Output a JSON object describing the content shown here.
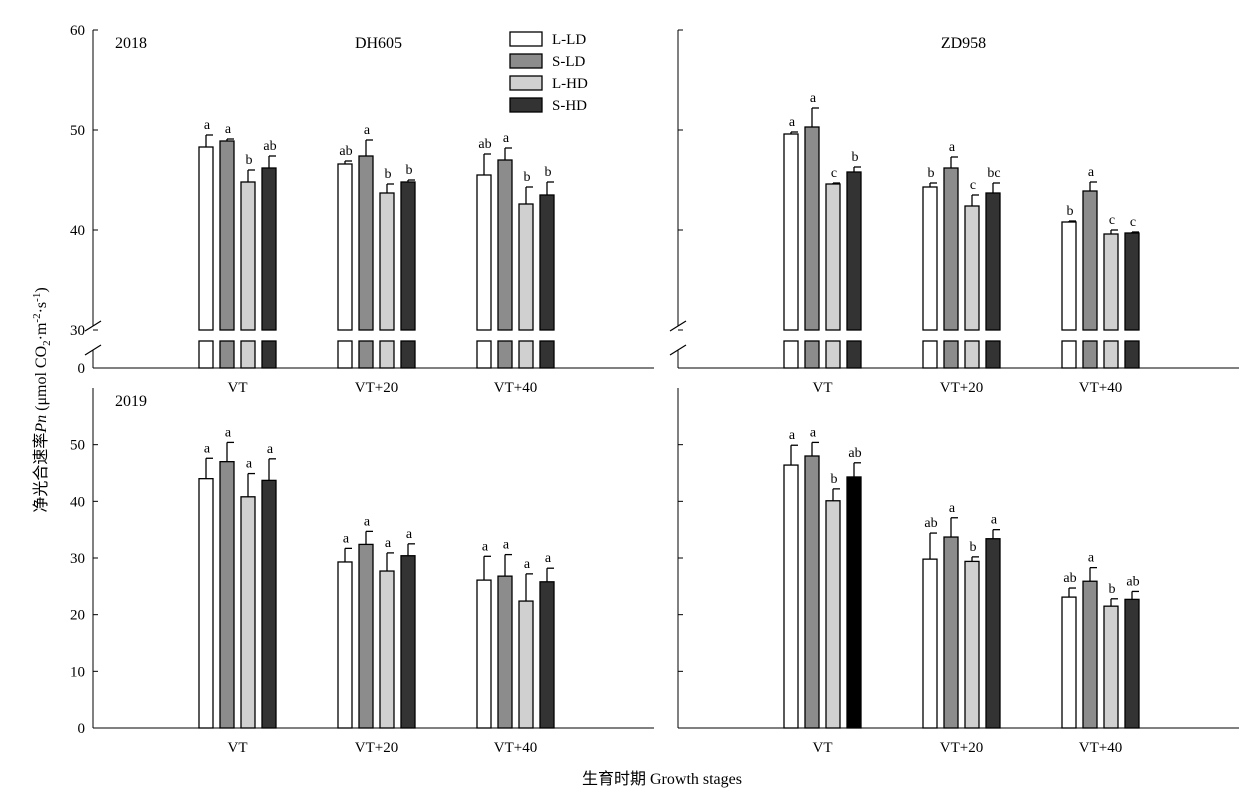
{
  "figure": {
    "ylabel": "净光合速率Pn (μmol CO2·m-2·s-1)",
    "xlabel": "生育时期 Growth stages"
  },
  "chart_data": [
    {
      "type": "bar",
      "panel": "2018-DH605",
      "year_label": "2018",
      "variety_label": "DH605",
      "categories": [
        "VT",
        "VT+20",
        "VT+40"
      ],
      "ylim": [
        30,
        60
      ],
      "axis_break": true,
      "yticks": [
        "30",
        "40",
        "50",
        "60"
      ],
      "break_tick": "0",
      "series": [
        {
          "name": "L-LD",
          "values": [
            48.3,
            46.6,
            45.5
          ],
          "err": [
            1.2,
            0.3,
            2.1
          ],
          "sig": [
            "a",
            "ab",
            "ab"
          ]
        },
        {
          "name": "S-LD",
          "values": [
            48.9,
            47.4,
            47.0
          ],
          "err": [
            0.2,
            1.6,
            1.2
          ],
          "sig": [
            "a",
            "a",
            "a"
          ]
        },
        {
          "name": "L-HD",
          "values": [
            44.8,
            43.7,
            42.6
          ],
          "err": [
            1.2,
            0.9,
            1.7
          ],
          "sig": [
            "b",
            "b",
            "b"
          ]
        },
        {
          "name": "S-HD",
          "values": [
            46.2,
            44.8,
            43.5
          ],
          "err": [
            1.2,
            0.2,
            1.3
          ],
          "sig": [
            "ab",
            "b",
            "b"
          ]
        }
      ]
    },
    {
      "type": "bar",
      "panel": "2018-ZD958",
      "year_label": "",
      "variety_label": "ZD958",
      "categories": [
        "VT",
        "VT+20",
        "VT+40"
      ],
      "ylim": [
        30,
        60
      ],
      "axis_break": true,
      "series": [
        {
          "name": "L-LD",
          "values": [
            49.6,
            44.3,
            40.8
          ],
          "err": [
            0.2,
            0.4,
            0.1
          ],
          "sig": [
            "a",
            "b",
            "b"
          ]
        },
        {
          "name": "S-LD",
          "values": [
            50.3,
            46.2,
            43.9
          ],
          "err": [
            1.9,
            1.1,
            0.9
          ],
          "sig": [
            "a",
            "a",
            "a"
          ]
        },
        {
          "name": "L-HD",
          "values": [
            44.6,
            42.4,
            39.6
          ],
          "err": [
            0.1,
            1.1,
            0.4
          ],
          "sig": [
            "c",
            "c",
            "c"
          ]
        },
        {
          "name": "S-HD",
          "values": [
            45.8,
            43.7,
            39.7
          ],
          "err": [
            0.5,
            1.0,
            0.1
          ],
          "sig": [
            "b",
            "bc",
            "c"
          ]
        }
      ]
    },
    {
      "type": "bar",
      "panel": "2019-DH605",
      "year_label": "2019",
      "variety_label": "",
      "categories": [
        "VT",
        "VT+20",
        "VT+40"
      ],
      "ylim": [
        0,
        60
      ],
      "yticks": [
        "0",
        "10",
        "20",
        "30",
        "40",
        "50"
      ],
      "series": [
        {
          "name": "L-LD",
          "values": [
            44.0,
            29.3,
            26.1
          ],
          "err": [
            3.6,
            2.4,
            4.2
          ],
          "sig": [
            "a",
            "a",
            "a"
          ]
        },
        {
          "name": "S-LD",
          "values": [
            47.0,
            32.4,
            26.8
          ],
          "err": [
            3.4,
            2.3,
            3.8
          ],
          "sig": [
            "a",
            "a",
            "a"
          ]
        },
        {
          "name": "L-HD",
          "values": [
            40.8,
            27.7,
            22.4
          ],
          "err": [
            4.1,
            3.2,
            4.8
          ],
          "sig": [
            "a",
            "a",
            "a"
          ]
        },
        {
          "name": "S-HD",
          "values": [
            43.7,
            30.4,
            25.8
          ],
          "err": [
            3.8,
            2.1,
            2.4
          ],
          "sig": [
            "a",
            "a",
            "a"
          ]
        }
      ]
    },
    {
      "type": "bar",
      "panel": "2019-ZD958",
      "year_label": "",
      "variety_label": "",
      "categories": [
        "VT",
        "VT+20",
        "VT+40"
      ],
      "ylim": [
        0,
        60
      ],
      "series": [
        {
          "name": "L-LD",
          "values": [
            46.4,
            29.8,
            23.1
          ],
          "err": [
            3.5,
            4.6,
            1.6
          ],
          "sig": [
            "a",
            "ab",
            "ab"
          ]
        },
        {
          "name": "S-LD",
          "values": [
            48.0,
            33.7,
            25.9
          ],
          "err": [
            2.4,
            3.4,
            2.4
          ],
          "sig": [
            "a",
            "a",
            "a"
          ]
        },
        {
          "name": "L-HD",
          "values": [
            40.1,
            29.4,
            21.5
          ],
          "err": [
            2.1,
            0.8,
            1.3
          ],
          "sig": [
            "b",
            "b",
            "b"
          ]
        },
        {
          "name": "S-HD",
          "values": [
            44.3,
            33.4,
            22.7
          ],
          "err": [
            2.5,
            1.6,
            1.4
          ],
          "sig": [
            "ab",
            "a",
            "ab"
          ]
        }
      ]
    }
  ],
  "legend": {
    "position": "top-right of first panel",
    "items": [
      {
        "name": "L-LD",
        "color": "#ffffff"
      },
      {
        "name": "S-LD",
        "color": "#8c8c8c"
      },
      {
        "name": "L-HD",
        "color": "#d0d0d0"
      },
      {
        "name": "S-HD",
        "color": "#333333"
      }
    ]
  },
  "colors": {
    "L-LD": "#ffffff",
    "S-LD": "#8c8c8c",
    "L-HD": "#d0d0d0",
    "S-HD": "#333333",
    "S-HD-2019-ZD958-VT": "#000000"
  }
}
